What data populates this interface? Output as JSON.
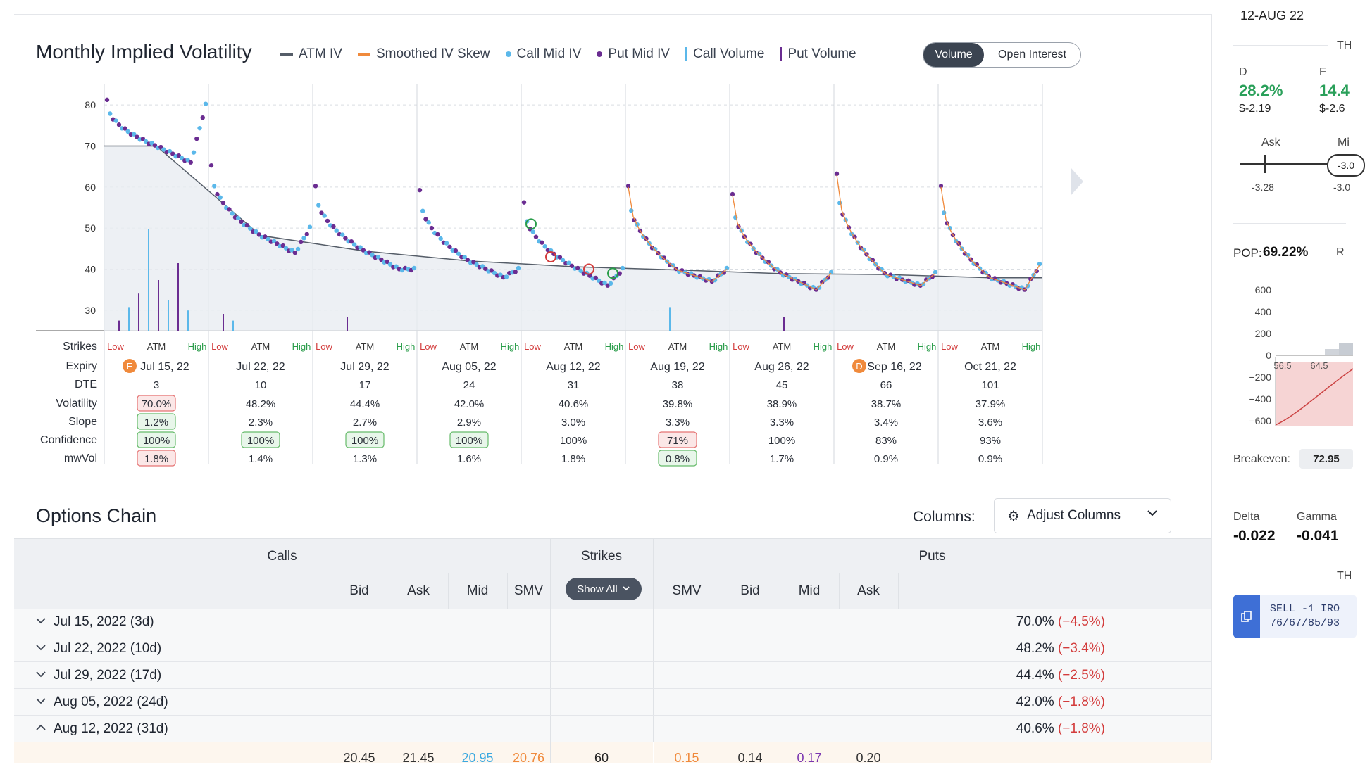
{
  "chart": {
    "title": "Monthly Implied Volatility",
    "legend": [
      {
        "label": "ATM IV",
        "kind": "line",
        "color": "#555d68"
      },
      {
        "label": "Smoothed IV Skew",
        "kind": "line",
        "color": "#f08a3c"
      },
      {
        "label": "Call Mid IV",
        "kind": "dot",
        "color": "#5bb8ea"
      },
      {
        "label": "Put Mid IV",
        "kind": "dot",
        "color": "#6a2c91"
      },
      {
        "label": "Call Volume",
        "kind": "bar",
        "color": "#5bb8ea"
      },
      {
        "label": "Put Volume",
        "kind": "bar",
        "color": "#6a2c91"
      }
    ],
    "toggle": {
      "active": "Volume",
      "inactive": "Open Interest"
    },
    "metric_labels": {
      "strikes": "Strikes",
      "expiry": "Expiry",
      "dte": "DTE",
      "volatility": "Volatility",
      "slope": "Slope",
      "confidence": "Confidence",
      "mwvol": "mwVol"
    },
    "strike_labels": [
      "Low",
      "ATM",
      "High"
    ]
  },
  "chart_data": {
    "type": "scatter",
    "title": "Monthly Implied Volatility",
    "ylim": [
      25,
      85
    ],
    "yticks": [
      30,
      40,
      50,
      60,
      70,
      80
    ],
    "grid": true,
    "legend_position": "top",
    "series": [
      {
        "name": "ATM IV",
        "type": "line"
      },
      {
        "name": "Smoothed IV Skew",
        "type": "line"
      },
      {
        "name": "Call Mid IV",
        "type": "scatter"
      },
      {
        "name": "Put Mid IV",
        "type": "scatter"
      },
      {
        "name": "Call Volume",
        "type": "bar"
      },
      {
        "name": "Put Volume",
        "type": "bar"
      }
    ],
    "expiries": [
      {
        "expiry": "Jul 15, 22",
        "badge": "E",
        "dte": "3",
        "volatility": "70.0%",
        "slope": "1.2%",
        "confidence": "100%",
        "mwvol": "1.8%",
        "vol_flag": "red",
        "slope_flag": "green",
        "conf_flag": "green",
        "mw_flag": "red",
        "low_iv": 81,
        "atm_iv": 70,
        "high_iv": 80,
        "min_iv": 66
      },
      {
        "expiry": "Jul 22, 22",
        "badge": "",
        "dte": "10",
        "volatility": "48.2%",
        "slope": "2.3%",
        "confidence": "100%",
        "mwvol": "1.4%",
        "vol_flag": "",
        "slope_flag": "",
        "conf_flag": "green",
        "mw_flag": "",
        "low_iv": 65,
        "atm_iv": 48.2,
        "high_iv": 50,
        "min_iv": 44
      },
      {
        "expiry": "Jul 29, 22",
        "badge": "",
        "dte": "17",
        "volatility": "44.4%",
        "slope": "2.7%",
        "confidence": "100%",
        "mwvol": "1.3%",
        "vol_flag": "",
        "slope_flag": "",
        "conf_flag": "green",
        "mw_flag": "",
        "low_iv": 60,
        "atm_iv": 44.4,
        "high_iv": 40,
        "min_iv": 40
      },
      {
        "expiry": "Aug 05, 22",
        "badge": "",
        "dte": "24",
        "volatility": "42.0%",
        "slope": "2.9%",
        "confidence": "100%",
        "mwvol": "1.6%",
        "vol_flag": "",
        "slope_flag": "",
        "conf_flag": "green",
        "mw_flag": "",
        "low_iv": 59,
        "atm_iv": 42.0,
        "high_iv": 40,
        "min_iv": 38
      },
      {
        "expiry": "Aug 12, 22",
        "badge": "",
        "dte": "31",
        "volatility": "40.6%",
        "slope": "3.0%",
        "confidence": "100%",
        "mwvol": "1.8%",
        "vol_flag": "",
        "slope_flag": "",
        "conf_flag": "",
        "mw_flag": "",
        "low_iv": 56,
        "atm_iv": 40.6,
        "high_iv": 40,
        "min_iv": 36
      },
      {
        "expiry": "Aug 19, 22",
        "badge": "",
        "dte": "38",
        "volatility": "39.8%",
        "slope": "3.3%",
        "confidence": "71%",
        "mwvol": "0.8%",
        "vol_flag": "",
        "slope_flag": "",
        "conf_flag": "red",
        "mw_flag": "green",
        "low_iv": 60,
        "atm_iv": 39.8,
        "high_iv": 40,
        "min_iv": 37
      },
      {
        "expiry": "Aug 26, 22",
        "badge": "",
        "dte": "45",
        "volatility": "38.9%",
        "slope": "3.3%",
        "confidence": "100%",
        "mwvol": "1.7%",
        "vol_flag": "",
        "slope_flag": "",
        "conf_flag": "",
        "mw_flag": "",
        "low_iv": 58,
        "atm_iv": 38.9,
        "high_iv": 39,
        "min_iv": 35
      },
      {
        "expiry": "Sep 16, 22",
        "badge": "D",
        "dte": "66",
        "volatility": "38.7%",
        "slope": "3.4%",
        "confidence": "83%",
        "mwvol": "0.9%",
        "vol_flag": "",
        "slope_flag": "",
        "conf_flag": "",
        "mw_flag": "",
        "low_iv": 63,
        "atm_iv": 38.7,
        "high_iv": 39,
        "min_iv": 36
      },
      {
        "expiry": "Oct 21, 22",
        "badge": "",
        "dte": "101",
        "volatility": "37.9%",
        "slope": "3.6%",
        "confidence": "93%",
        "mwvol": "0.9%",
        "vol_flag": "",
        "slope_flag": "",
        "conf_flag": "",
        "mw_flag": "",
        "low_iv": 60,
        "atm_iv": 37.9,
        "high_iv": 41,
        "min_iv": 35
      }
    ]
  },
  "options_chain": {
    "title": "Options Chain",
    "columns_label": "Columns:",
    "adjust_button": "Adjust Columns",
    "headers": {
      "calls": "Calls",
      "strikes": "Strikes",
      "puts": "Puts"
    },
    "call_cols": [
      "Bid",
      "Ask",
      "Mid",
      "SMV"
    ],
    "put_cols": [
      "SMV",
      "Bid",
      "Mid",
      "Ask"
    ],
    "show_all": "Show All",
    "expiries": [
      {
        "label": "Jul 15, 2022 (3d)",
        "iv": "70.0%",
        "change": "(−4.5%)",
        "open": false
      },
      {
        "label": "Jul 22, 2022 (10d)",
        "iv": "48.2%",
        "change": "(−3.4%)",
        "open": false
      },
      {
        "label": "Jul 29, 2022 (17d)",
        "iv": "44.4%",
        "change": "(−2.5%)",
        "open": false
      },
      {
        "label": "Aug 05, 2022 (24d)",
        "iv": "42.0%",
        "change": "(−1.8%)",
        "open": false
      },
      {
        "label": "Aug 12, 2022 (31d)",
        "iv": "40.6%",
        "change": "(−1.8%)",
        "open": true
      }
    ],
    "first_row": {
      "bid": "20.45",
      "ask": "21.45",
      "mid": "20.95",
      "smv": "20.76",
      "strike": "60",
      "p_smv": "0.15",
      "p_bid": "0.14",
      "p_mid": "0.17",
      "p_ask": "0.20"
    }
  },
  "right_panel": {
    "date": "12-AUG 22",
    "th_label": "TH",
    "d_label": "D",
    "f_label": "F",
    "d_pct": "28.2%",
    "d_amt": "$-2.19",
    "f_pct": "14.4",
    "f_amt": "$-2.6",
    "ask_label": "Ask",
    "mi_label": "Mi",
    "ask_val": "-3.28",
    "mid_val": "-3.0",
    "mid_pill": "-3.0",
    "pop_label": "POP:",
    "pop_val": "69.22%",
    "r_label": "R",
    "y_ticks": [
      "600",
      "400",
      "200",
      "0",
      "−200",
      "−400",
      "−600"
    ],
    "x_ticks": [
      "56.5",
      "64.5"
    ],
    "breakeven_label": "Breakeven:",
    "breakeven_val": "72.95",
    "delta_label": "Delta",
    "delta_val": "-0.022",
    "gamma_label": "Gamma",
    "gamma_val": "-0.041",
    "th2_label": "TH",
    "sell_line1": "SELL -1 IRO",
    "sell_line2": "76/67/85/93"
  }
}
